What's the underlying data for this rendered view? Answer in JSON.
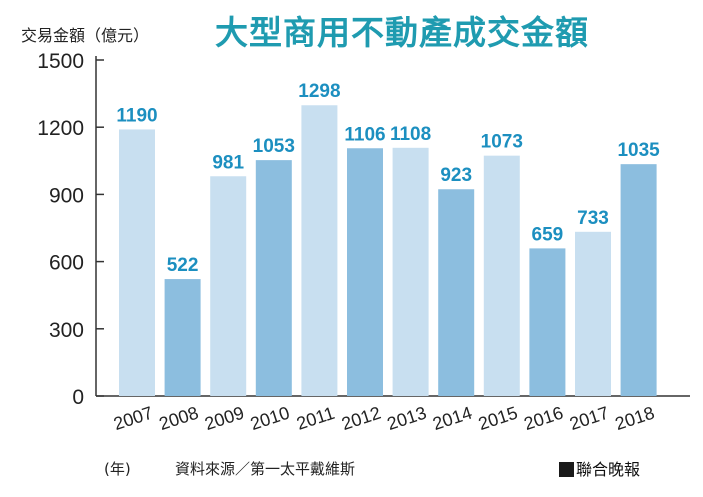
{
  "chart_data": {
    "type": "bar",
    "title": "大型商用不動產成交金額",
    "ylabel": "交易金額（億元）",
    "xlabel": "(年)",
    "categories": [
      "2007",
      "2008",
      "2009",
      "2010",
      "2011",
      "2012",
      "2013",
      "2014",
      "2015",
      "2016",
      "2017",
      "2018"
    ],
    "values": [
      1190,
      522,
      981,
      1053,
      1298,
      1106,
      1108,
      923,
      1073,
      659,
      733,
      1035
    ],
    "yticks": [
      0,
      300,
      600,
      900,
      1200,
      1500
    ],
    "ylim": [
      0,
      1500
    ],
    "grid": false,
    "legend": "none",
    "colors": {
      "light_bar": "#c8dff0",
      "dark_bar": "#8cbedf",
      "data_label": "#1c8fc0",
      "title": "#1f9bb0",
      "axis": "#333333"
    },
    "bar_shades": [
      "light",
      "dark",
      "light",
      "dark",
      "light",
      "dark",
      "light",
      "dark",
      "light",
      "dark",
      "light",
      "dark"
    ]
  },
  "footer": {
    "source": "資料來源／第一太平戴維斯",
    "brand": "聯合晚報"
  }
}
